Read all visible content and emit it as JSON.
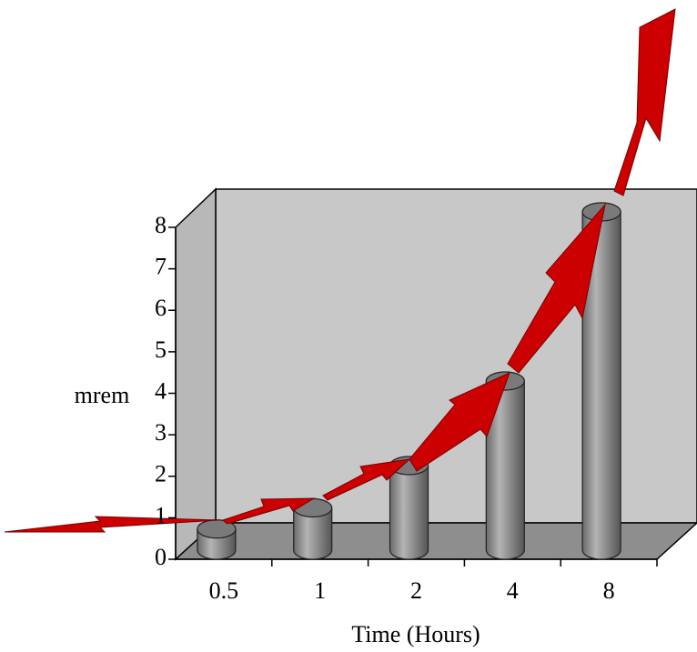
{
  "chart_data": {
    "type": "bar",
    "categories": [
      "0.5",
      "1",
      "2",
      "4",
      "8"
    ],
    "values": [
      0.5,
      1,
      2,
      4,
      8
    ],
    "color": "#8a8a8a",
    "ylim": [
      0,
      8
    ],
    "yticks": [
      0,
      1,
      2,
      3,
      4,
      5,
      6,
      7,
      8
    ],
    "y_label": "mrem",
    "x_label": "Time (Hours)"
  }
}
